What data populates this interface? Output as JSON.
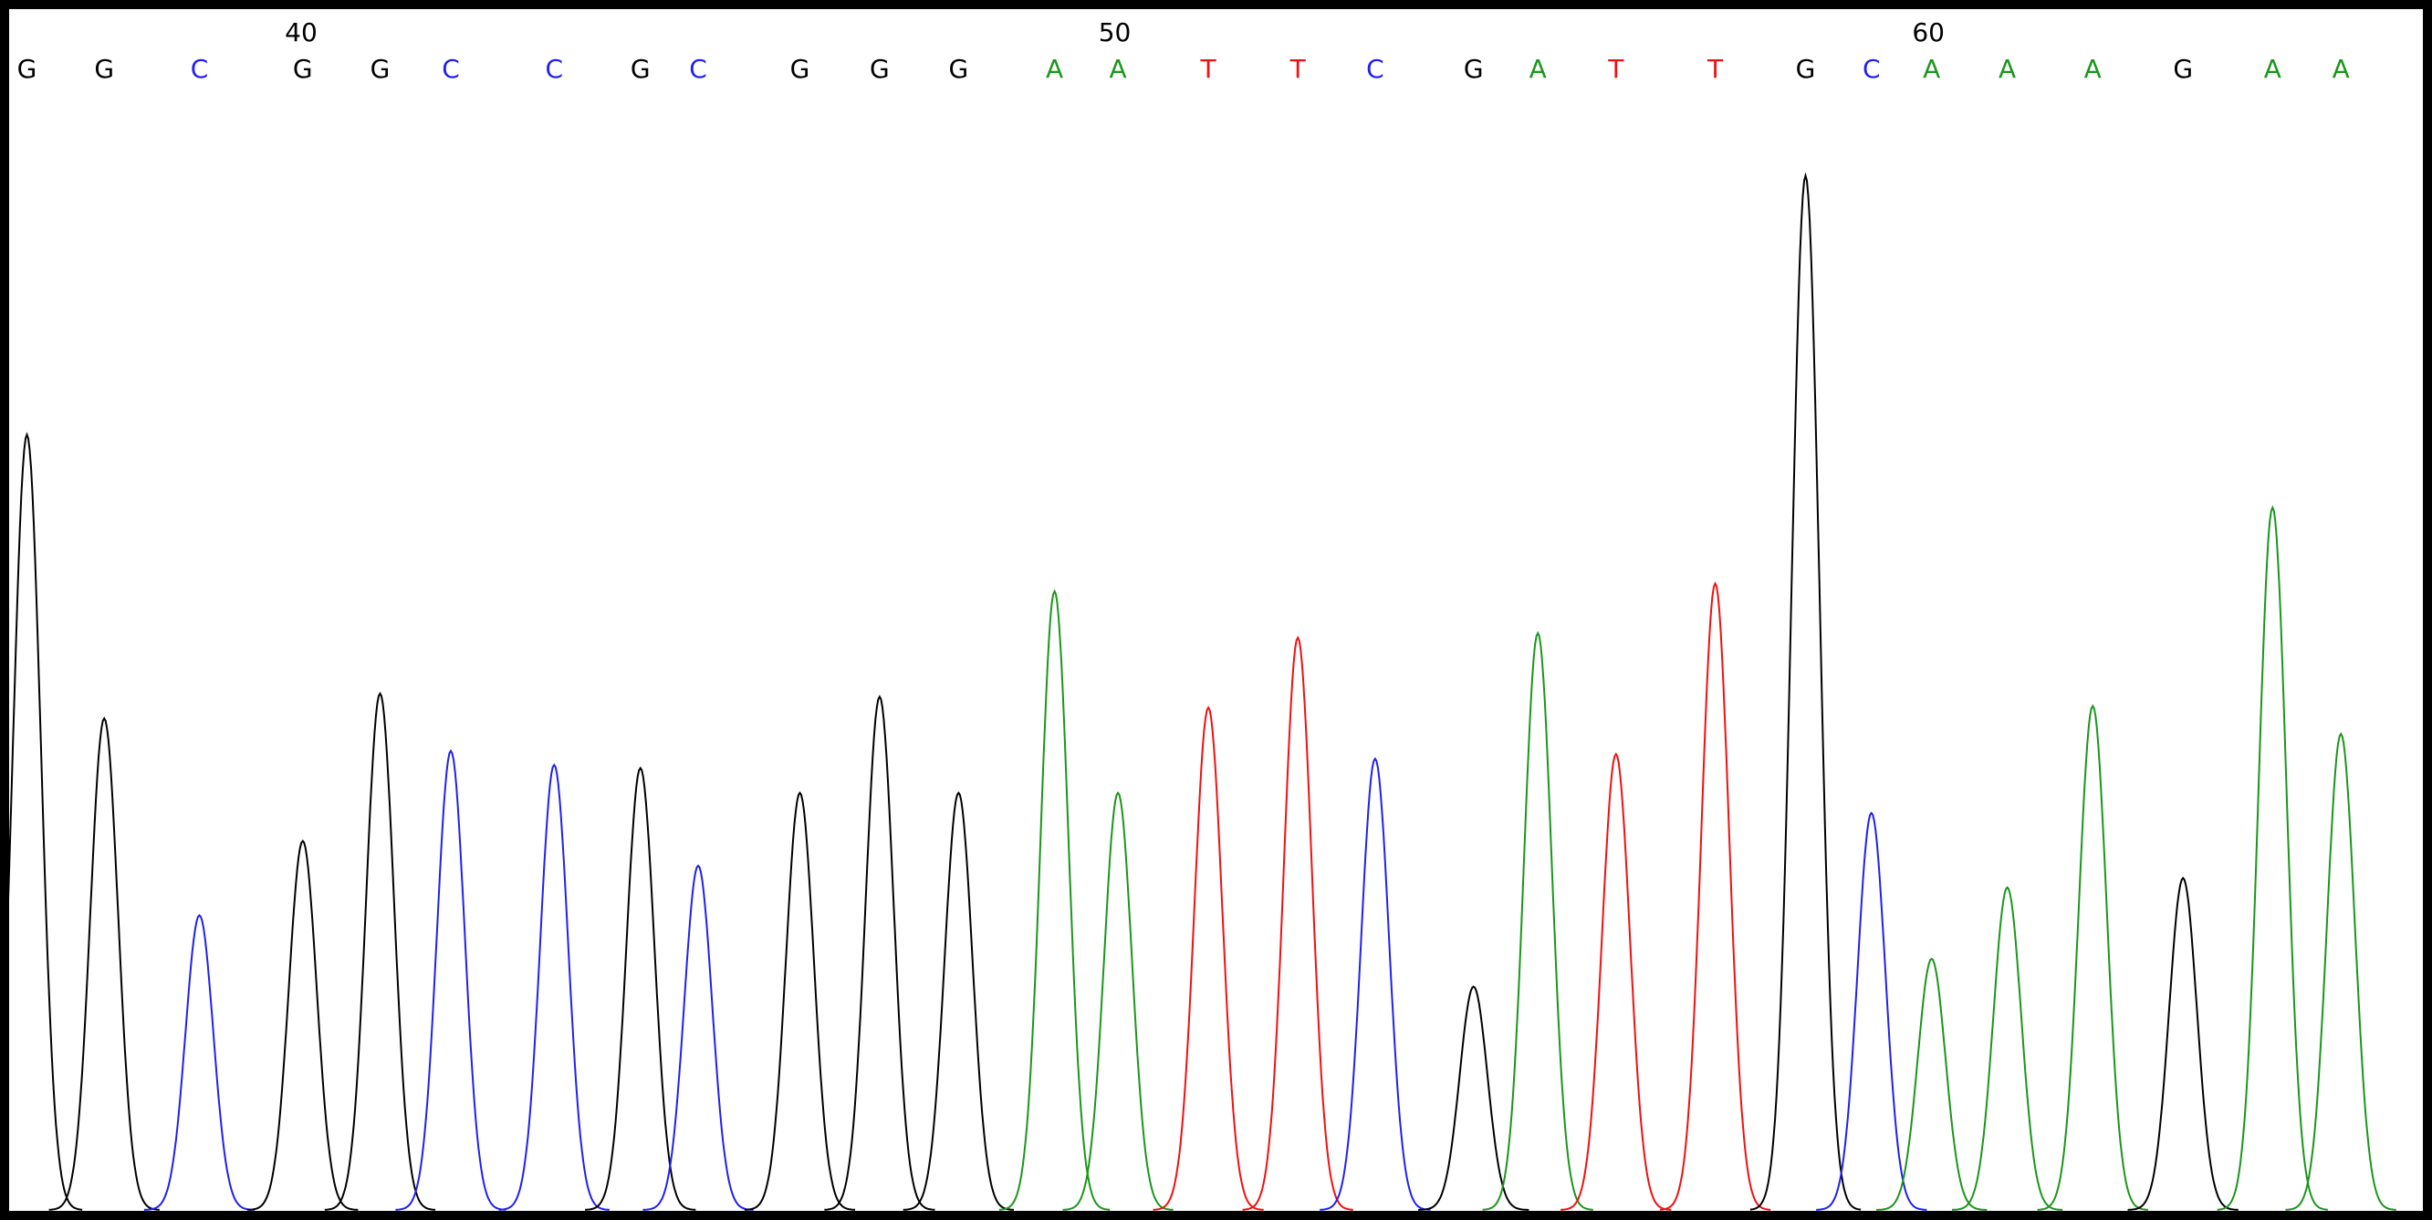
{
  "chart_data": {
    "type": "chromatogram",
    "bases": [
      "G",
      "G",
      "C",
      "G",
      "G",
      "C",
      "C",
      "G",
      "C",
      "G",
      "G",
      "G",
      "A",
      "A",
      "T",
      "T",
      "C",
      "G",
      "A",
      "T",
      "T",
      "G",
      "C",
      "A",
      "A",
      "A",
      "G",
      "A",
      "A"
    ],
    "x": [
      36.63,
      37.58,
      38.75,
      40.02,
      40.97,
      41.84,
      43.11,
      44.17,
      44.88,
      46.13,
      47.11,
      48.08,
      49.26,
      50.04,
      51.15,
      52.25,
      53.2,
      54.41,
      55.2,
      56.16,
      57.38,
      58.49,
      59.3,
      60.04,
      60.97,
      62.02,
      63.13,
      64.23,
      65.07
    ],
    "values": [
      500,
      317,
      190,
      238,
      333,
      296,
      287,
      285,
      222,
      269,
      331,
      269,
      399,
      269,
      324,
      369,
      291,
      144,
      372,
      294,
      404,
      667,
      256,
      162,
      208,
      325,
      214,
      453,
      307
    ],
    "base_colors": {
      "A": "#1a961a",
      "C": "#2020f0",
      "G": "#000000",
      "T": "#f01010"
    },
    "xlim": [
      36.4,
      66.1
    ],
    "xticks": [
      40,
      50,
      60
    ],
    "ylim": [
      0,
      775
    ]
  }
}
